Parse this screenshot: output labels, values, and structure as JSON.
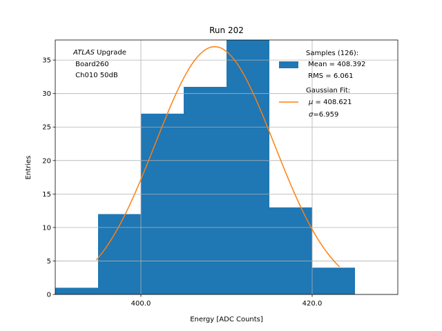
{
  "chart_data": {
    "type": "bar",
    "title": "Run 202",
    "xlabel": "Energy [ADC Counts]",
    "ylabel": "Entries",
    "xlim": [
      390,
      430
    ],
    "ylim": [
      0,
      38
    ],
    "grid": true,
    "legend_placement": "top-right",
    "xticks": [
      400,
      420
    ],
    "xtick_labels": [
      "400.0",
      "420.0"
    ],
    "yticks": [
      0,
      5,
      10,
      15,
      20,
      25,
      30,
      35
    ],
    "yticks_labels": [
      "0",
      "5",
      "10",
      "15",
      "20",
      "25",
      "30",
      "35"
    ],
    "histogram": {
      "bin_edges": [
        390,
        395,
        400,
        405,
        410,
        415,
        420,
        425,
        430
      ],
      "counts": [
        1,
        12,
        27,
        31,
        38,
        13,
        4,
        0
      ],
      "color": "#1f77b4"
    },
    "fit": {
      "name": "Gaussian Fit",
      "mu": 408.621,
      "sigma": 6.959,
      "amplitude": 37.0,
      "x_range": [
        394.8,
        423.2
      ],
      "color": "#ff7f0e"
    },
    "annotation": {
      "line1_italic": "ATLAS",
      "line1_rest": " Upgrade",
      "line2": " Board260",
      "line3": " Ch010 50dB"
    },
    "legend": {
      "samples_line1": "Samples (126):",
      "samples_line2": " Mean = 408.392",
      "samples_line3": " RMS = 6.061",
      "fit_line1": "Gaussian Fit:",
      "fit_line2_symbol": "μ",
      "fit_line2_rest": " = 408.621",
      "fit_line3_symbol": "σ",
      "fit_line3_rest": "=6.959"
    }
  }
}
